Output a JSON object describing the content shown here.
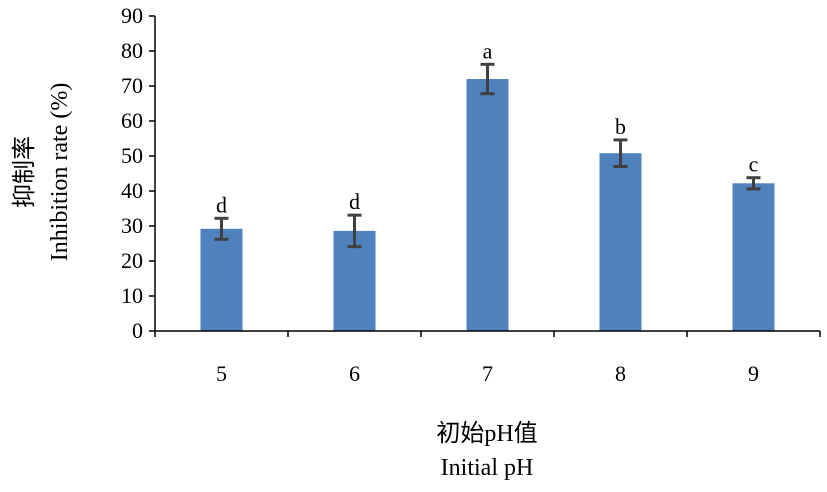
{
  "chart_data": {
    "type": "bar",
    "categories": [
      "5",
      "6",
      "7",
      "8",
      "9"
    ],
    "values": [
      29.2,
      28.6,
      72.0,
      50.8,
      42.2
    ],
    "errors": [
      3.0,
      4.5,
      4.2,
      3.8,
      1.6
    ],
    "significance": [
      "d",
      "d",
      "a",
      "b",
      "c"
    ],
    "xlabel_zh": "初始pH值",
    "xlabel_en": "Initial  pH",
    "ylabel_zh": "抑制率",
    "ylabel_en": "Inhibition rate (%)",
    "ylim": [
      0,
      90
    ],
    "yticks": [
      0,
      10,
      20,
      30,
      40,
      50,
      60,
      70,
      80,
      90
    ],
    "bar_color": "#4f81bd",
    "error_color": "#404040",
    "grid": false
  }
}
